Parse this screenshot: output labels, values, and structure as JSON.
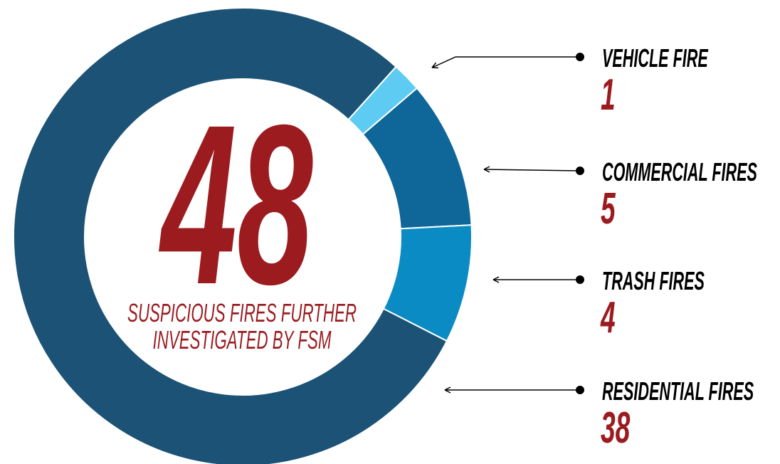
{
  "chart_data": {
    "type": "donut",
    "total": 48,
    "subtitle": [
      "SUSPICIOUS FIRES FURTHER",
      "INVESTIGATED BY FSM"
    ],
    "categories": [
      "VEHICLE FIRE",
      "COMMERCIAL FIRES",
      "TRASH FIRES",
      "RESIDENTIAL FIRES"
    ],
    "values": [
      1,
      5,
      4,
      38
    ],
    "colors": [
      "#5ecbf3",
      "#0e6699",
      "#0a8bc4",
      "#1b5275"
    ]
  }
}
